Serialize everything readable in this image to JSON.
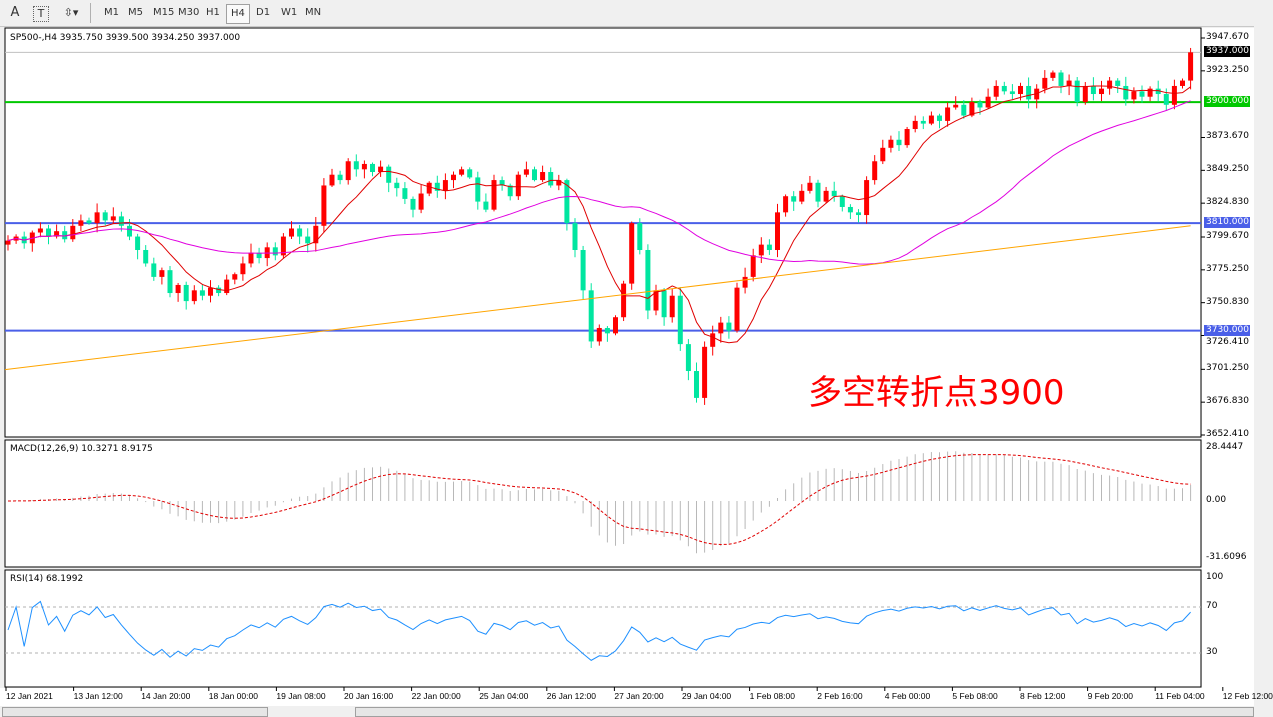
{
  "toolbar": {
    "tools": [
      "A",
      "T"
    ],
    "timeframes": [
      "M1",
      "M5",
      "M15",
      "M30",
      "H1",
      "H4",
      "D1",
      "W1",
      "MN"
    ],
    "active_timeframe": "H4"
  },
  "chart": {
    "header": "SP500-,H4  3935.750 3939.500 3934.250 3937.000",
    "symbol": "SP500-",
    "timeframe": "H4",
    "ohlc": {
      "open": 3935.75,
      "high": 3939.5,
      "low": 3934.25,
      "close": 3937.0
    },
    "price_axis": [
      "3947.670",
      "3923.250",
      "3873.670",
      "3849.250",
      "3824.830",
      "3799.670",
      "3775.250",
      "3750.830",
      "3726.410",
      "3701.250",
      "3676.830",
      "3652.410"
    ],
    "price_range": [
      3652.41,
      3947.67
    ],
    "current_price": {
      "label": "3937.000",
      "value": 3937.0,
      "color": "#000000"
    },
    "hlines": [
      {
        "label": "3900.000",
        "value": 3900.0,
        "color": "#00c800"
      },
      {
        "label": "3810.000",
        "value": 3810.0,
        "color": "#4a5fe8"
      },
      {
        "label": "3730.000",
        "value": 3730.0,
        "color": "#4a5fe8"
      }
    ],
    "annotation": "多空转折点3900",
    "annotation_color": "#ff0000",
    "up_color": "#ff0000",
    "down_color": "#00e6a0",
    "ma_colors": {
      "fast": "#e00000",
      "mid": "#e000e0",
      "slow": "#ffa500"
    },
    "ma_slow": [
      3701,
      3808
    ],
    "closes": [
      3797,
      3800,
      3795,
      3803,
      3806,
      3800,
      3804,
      3798,
      3808,
      3812,
      3810,
      3818,
      3812,
      3815,
      3808,
      3800,
      3790,
      3780,
      3770,
      3775,
      3758,
      3764,
      3752,
      3760,
      3756,
      3762,
      3758,
      3768,
      3772,
      3780,
      3788,
      3784,
      3792,
      3786,
      3800,
      3806,
      3800,
      3795,
      3808,
      3838,
      3846,
      3842,
      3856,
      3850,
      3854,
      3848,
      3852,
      3840,
      3836,
      3828,
      3820,
      3832,
      3840,
      3834,
      3842,
      3846,
      3850,
      3844,
      3826,
      3820,
      3842,
      3838,
      3830,
      3846,
      3850,
      3842,
      3848,
      3838,
      3842,
      3810,
      3790,
      3760,
      3722,
      3732,
      3728,
      3740,
      3765,
      3810,
      3790,
      3745,
      3760,
      3740,
      3756,
      3720,
      3700,
      3680,
      3718,
      3728,
      3736,
      3730,
      3762,
      3770,
      3786,
      3794,
      3790,
      3818,
      3830,
      3826,
      3834,
      3840,
      3826,
      3834,
      3830,
      3822,
      3818,
      3816,
      3842,
      3856,
      3866,
      3872,
      3868,
      3880,
      3886,
      3884,
      3890,
      3886,
      3896,
      3898,
      3890,
      3900,
      3896,
      3904,
      3912,
      3908,
      3906,
      3912,
      3902,
      3910,
      3918,
      3922,
      3912,
      3916,
      3900,
      3912,
      3906,
      3910,
      3916,
      3912,
      3902,
      3908,
      3904,
      3910,
      3906,
      3898,
      3912,
      3916,
      3937
    ]
  },
  "macd": {
    "label": "MACD(12,26,9) 10.3271 8.9175",
    "axis": [
      "28.4447",
      "0.00",
      "-31.6096"
    ],
    "range": [
      -31.6096,
      28.4447
    ]
  },
  "rsi": {
    "label": "RSI(14) 68.1992",
    "axis": [
      "100",
      "70",
      "30"
    ],
    "levels": [
      70,
      30
    ],
    "line_color": "#1e90ff"
  },
  "time_axis": [
    "12 Jan 2021",
    "13 Jan 12:00",
    "14 Jan 20:00",
    "18 Jan 00:00",
    "19 Jan 08:00",
    "20 Jan 16:00",
    "22 Jan 00:00",
    "25 Jan 04:00",
    "26 Jan 12:00",
    "27 Jan 20:00",
    "29 Jan 04:00",
    "1 Feb 08:00",
    "2 Feb 16:00",
    "4 Feb 00:00",
    "5 Feb 08:00",
    "8 Feb 12:00",
    "9 Feb 20:00",
    "11 Feb 04:00",
    "12 Feb 12:00"
  ]
}
